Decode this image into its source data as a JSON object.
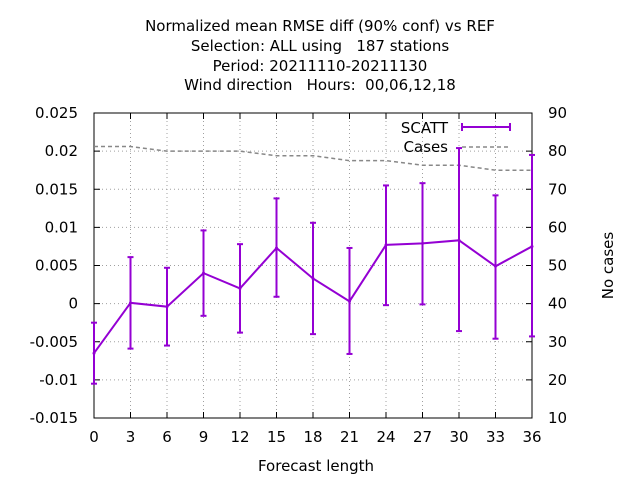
{
  "chart_data": {
    "type": "line",
    "title_lines": [
      "Normalized mean RMSE diff (90% conf) vs REF",
      "Selection: ALL using   187 stations",
      "Period: 20211110-20211130",
      "Wind direction   Hours:  00,06,12,18"
    ],
    "xlabel": "Forecast length",
    "ylabel": "",
    "y2label": "No cases",
    "x": [
      0,
      3,
      6,
      9,
      12,
      15,
      18,
      21,
      24,
      27,
      30,
      33,
      36
    ],
    "xlim": [
      0,
      36
    ],
    "ylim": [
      -0.015,
      0.025
    ],
    "y2lim": [
      10,
      90
    ],
    "x_ticks": [
      "0",
      "3",
      "6",
      "9",
      "12",
      "15",
      "18",
      "21",
      "24",
      "27",
      "30",
      "33",
      "36"
    ],
    "y_ticks": [
      "-0.015",
      "-0.01",
      "-0.005",
      "0",
      "0.005",
      "0.01",
      "0.015",
      "0.02",
      "0.025"
    ],
    "y2_ticks": [
      "10",
      "20",
      "30",
      "40",
      "50",
      "60",
      "70",
      "80",
      "90"
    ],
    "grid": true,
    "legend_position": "top-right",
    "series": [
      {
        "name": "SCATT",
        "color": "#9400d3",
        "axis": "y1",
        "values": [
          -0.0065,
          0.0001,
          -0.0004,
          0.004,
          0.002,
          0.0073,
          0.0033,
          0.0003,
          0.0077,
          0.0079,
          0.0083,
          0.0049,
          0.0075
        ],
        "err_low": [
          -0.0105,
          -0.0059,
          -0.0055,
          -0.0016,
          -0.0038,
          0.0009,
          -0.004,
          -0.0066,
          -0.0002,
          -0.0001,
          -0.0036,
          -0.0046,
          -0.0043
        ],
        "err_high": [
          -0.0025,
          0.0061,
          0.0047,
          0.0096,
          0.0078,
          0.0138,
          0.0106,
          0.0073,
          0.0155,
          0.0158,
          0.0204,
          0.0142,
          0.0195
        ]
      },
      {
        "name": "Cases",
        "color": "#888888",
        "axis": "y2",
        "values": [
          81.2,
          81.2,
          80.0,
          80.0,
          80.0,
          78.8,
          78.8,
          77.5,
          77.5,
          76.3,
          76.3,
          75.0,
          75.0
        ]
      }
    ]
  }
}
